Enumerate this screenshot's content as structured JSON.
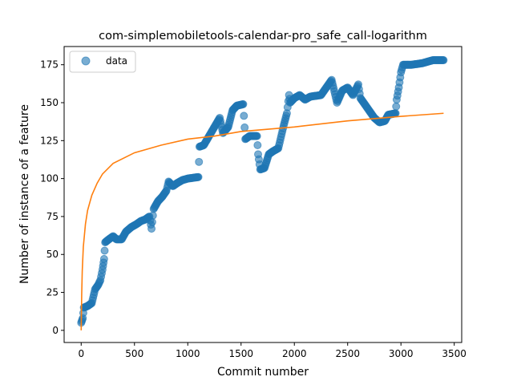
{
  "chart_data": {
    "type": "scatter",
    "title": "com-simplemobiletools-calendar-pro_safe_call-logarithm",
    "xlabel": "Commit number",
    "ylabel": "Number of instance of a feature",
    "xlim": [
      -160,
      3570
    ],
    "ylim": [
      -8,
      187
    ],
    "x_ticks": [
      0,
      500,
      1000,
      1500,
      2000,
      2500,
      3000,
      3500
    ],
    "y_ticks": [
      0,
      25,
      50,
      75,
      100,
      125,
      150,
      175
    ],
    "grid": false,
    "legend": {
      "position": "top-left",
      "entries": [
        "data"
      ]
    },
    "colors": {
      "data": "#1f77b4",
      "fit": "#ff7f0e"
    },
    "series": [
      {
        "name": "data",
        "kind": "scatter",
        "segments": [
          [
            0,
            5
          ],
          [
            15,
            8
          ],
          [
            25,
            15
          ],
          [
            60,
            16
          ],
          [
            100,
            18
          ],
          [
            130,
            27
          ],
          [
            160,
            30
          ],
          [
            180,
            33
          ],
          [
            200,
            40
          ],
          [
            215,
            47
          ],
          [
            225,
            58
          ],
          [
            260,
            60
          ],
          [
            300,
            62
          ],
          [
            330,
            60
          ],
          [
            380,
            60
          ],
          [
            420,
            65
          ],
          [
            470,
            68
          ],
          [
            520,
            70
          ],
          [
            560,
            72
          ],
          [
            600,
            73
          ],
          [
            640,
            75
          ],
          [
            660,
            67
          ],
          [
            680,
            80
          ],
          [
            720,
            85
          ],
          [
            760,
            88
          ],
          [
            800,
            92
          ],
          [
            820,
            98
          ],
          [
            860,
            95
          ],
          [
            900,
            97
          ],
          [
            950,
            99
          ],
          [
            1000,
            100
          ],
          [
            1100,
            101
          ],
          [
            1110,
            121
          ],
          [
            1150,
            122
          ],
          [
            1200,
            128
          ],
          [
            1250,
            134
          ],
          [
            1300,
            140
          ],
          [
            1330,
            130
          ],
          [
            1380,
            134
          ],
          [
            1420,
            145
          ],
          [
            1460,
            148
          ],
          [
            1520,
            149
          ],
          [
            1540,
            126
          ],
          [
            1580,
            128
          ],
          [
            1650,
            128
          ],
          [
            1660,
            116
          ],
          [
            1680,
            106
          ],
          [
            1720,
            107
          ],
          [
            1760,
            116
          ],
          [
            1800,
            118
          ],
          [
            1850,
            120
          ],
          [
            1900,
            135
          ],
          [
            1930,
            143
          ],
          [
            1950,
            155
          ],
          [
            1960,
            150
          ],
          [
            2000,
            153
          ],
          [
            2050,
            155
          ],
          [
            2100,
            152
          ],
          [
            2150,
            154
          ],
          [
            2250,
            155
          ],
          [
            2300,
            160
          ],
          [
            2350,
            165
          ],
          [
            2400,
            150
          ],
          [
            2450,
            158
          ],
          [
            2500,
            160
          ],
          [
            2550,
            155
          ],
          [
            2600,
            162
          ],
          [
            2620,
            153
          ],
          [
            2650,
            150
          ],
          [
            2700,
            145
          ],
          [
            2750,
            140
          ],
          [
            2800,
            137
          ],
          [
            2850,
            138
          ],
          [
            2880,
            142
          ],
          [
            2950,
            143
          ],
          [
            2960,
            152
          ],
          [
            2980,
            160
          ],
          [
            3000,
            170
          ],
          [
            3020,
            175
          ],
          [
            3100,
            175
          ],
          [
            3200,
            176
          ],
          [
            3300,
            178
          ],
          [
            3400,
            178
          ]
        ]
      },
      {
        "name": "",
        "kind": "line",
        "model": "logarithm",
        "points": [
          [
            0,
            0
          ],
          [
            5,
            24
          ],
          [
            10,
            39
          ],
          [
            20,
            55
          ],
          [
            40,
            70
          ],
          [
            60,
            79
          ],
          [
            100,
            89
          ],
          [
            150,
            97
          ],
          [
            200,
            103
          ],
          [
            300,
            110
          ],
          [
            500,
            117
          ],
          [
            750,
            122
          ],
          [
            1000,
            126
          ],
          [
            1250,
            128
          ],
          [
            1500,
            131
          ],
          [
            2000,
            134
          ],
          [
            2500,
            138
          ],
          [
            3000,
            141
          ],
          [
            3400,
            143
          ]
        ]
      }
    ]
  }
}
